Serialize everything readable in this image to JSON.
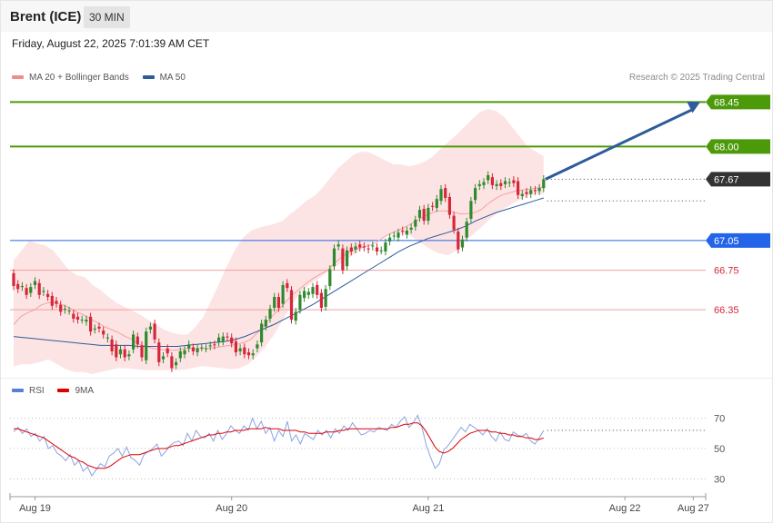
{
  "header": {
    "title": "Brent (ICE)",
    "interval": "30 MIN",
    "datetime": "Friday, August 22, 2025 7:01:39 AM CET"
  },
  "legend": {
    "items": [
      {
        "label": "MA 20 + Bollinger Bands",
        "color": "#f28b8b"
      },
      {
        "label": "MA 50",
        "color": "#2e5b9a"
      }
    ],
    "credit": "Research © 2025 Trading Central"
  },
  "rsi_legend": {
    "items": [
      {
        "label": "RSI",
        "color": "#5b7fd6"
      },
      {
        "label": "9MA",
        "color": "#e00000"
      }
    ]
  },
  "colors": {
    "up": "#2f8a2f",
    "down": "#d6263a",
    "target": "#4c9a0a",
    "pivot": "#2464e8",
    "support": "#d6263a",
    "last": "#333333",
    "arrow": "#2e5b9a",
    "band": "#fde4e4",
    "ma20": "#f5a0a0",
    "ma50": "#2e5b9a",
    "rsi": "#8aa3e3",
    "rsi_ma": "#e00000"
  },
  "chart_data": [
    {
      "type": "candlestick",
      "yrange": [
        65.7,
        68.6
      ],
      "x_ticks": [
        {
          "label": "Aug 19",
          "index": 5
        },
        {
          "label": "Aug 20",
          "index": 51
        },
        {
          "label": "Aug 21",
          "index": 97
        },
        {
          "label": "Aug 22",
          "index": 143
        },
        {
          "label": "Aug 27",
          "index": 159
        }
      ],
      "levels": [
        {
          "value": 68.45,
          "label": "68.45",
          "kind": "target"
        },
        {
          "value": 68.0,
          "label": "68.00",
          "kind": "target"
        },
        {
          "value": 67.67,
          "label": "67.67",
          "kind": "last"
        },
        {
          "value": 67.05,
          "label": "67.05",
          "kind": "pivot"
        },
        {
          "value": 66.75,
          "label": "66.75",
          "kind": "support"
        },
        {
          "value": 66.35,
          "label": "66.35",
          "kind": "support"
        }
      ],
      "candles": [
        [
          66.72,
          66.59
        ],
        [
          66.61,
          66.56
        ],
        [
          66.58,
          66.59
        ],
        [
          66.57,
          66.5
        ],
        [
          66.52,
          66.58
        ],
        [
          66.6,
          66.64
        ],
        [
          66.62,
          66.5
        ],
        [
          66.53,
          66.54
        ],
        [
          66.51,
          66.48
        ],
        [
          66.49,
          66.39
        ],
        [
          66.44,
          66.41
        ],
        [
          66.4,
          66.33
        ],
        [
          66.35,
          66.36
        ],
        [
          66.34,
          66.34
        ],
        [
          66.31,
          66.26
        ],
        [
          66.28,
          66.25
        ],
        [
          66.25,
          66.25
        ],
        [
          66.23,
          66.25
        ],
        [
          66.28,
          66.13
        ],
        [
          66.15,
          66.16
        ],
        [
          66.18,
          66.16
        ],
        [
          66.14,
          66.1
        ],
        [
          66.06,
          66.07
        ],
        [
          66.05,
          65.93
        ],
        [
          66.0,
          65.87
        ],
        [
          65.9,
          65.95
        ],
        [
          65.95,
          65.87
        ],
        [
          65.88,
          65.9
        ],
        [
          65.95,
          66.1
        ],
        [
          66.08,
          66.0
        ],
        [
          65.99,
          65.87
        ],
        [
          65.84,
          66.13
        ],
        [
          66.15,
          66.18
        ],
        [
          66.21,
          66.05
        ],
        [
          66.02,
          65.82
        ],
        [
          65.85,
          65.88
        ],
        [
          65.96,
          65.91
        ],
        [
          65.88,
          65.76
        ],
        [
          65.79,
          65.82
        ],
        [
          65.86,
          65.93
        ],
        [
          65.9,
          65.94
        ],
        [
          65.96,
          66.0
        ],
        [
          65.97,
          65.93
        ],
        [
          65.92,
          65.96
        ],
        [
          65.97,
          65.97
        ],
        [
          65.96,
          65.96
        ],
        [
          65.98,
          65.99
        ],
        [
          66.0,
          65.99
        ],
        [
          66.02,
          66.07
        ],
        [
          66.03,
          66.08
        ],
        [
          66.08,
          66.07
        ],
        [
          66.07,
          66.01
        ],
        [
          66.03,
          65.92
        ],
        [
          65.93,
          65.96
        ],
        [
          65.97,
          65.9
        ],
        [
          65.92,
          65.89
        ],
        [
          65.89,
          65.91
        ],
        [
          65.96,
          66.0
        ],
        [
          66.02,
          66.21
        ],
        [
          66.18,
          66.25
        ],
        [
          66.26,
          66.36
        ],
        [
          66.37,
          66.48
        ],
        [
          66.48,
          66.37
        ],
        [
          66.41,
          66.6
        ],
        [
          66.62,
          66.57
        ],
        [
          66.55,
          66.25
        ],
        [
          66.24,
          66.33
        ],
        [
          66.35,
          66.5
        ],
        [
          66.47,
          66.54
        ],
        [
          66.5,
          66.53
        ],
        [
          66.51,
          66.58
        ],
        [
          66.6,
          66.5
        ],
        [
          66.52,
          66.37
        ],
        [
          66.38,
          66.56
        ],
        [
          66.59,
          66.76
        ],
        [
          66.79,
          66.97
        ],
        [
          66.99,
          67.01
        ],
        [
          66.97,
          66.75
        ],
        [
          66.79,
          66.95
        ],
        [
          66.98,
          66.94
        ],
        [
          66.96,
          66.99
        ],
        [
          67.01,
          66.98
        ],
        [
          66.99,
          66.98
        ],
        [
          66.97,
          66.96
        ],
        [
          66.99,
          67.0
        ],
        [
          66.98,
          66.94
        ],
        [
          66.95,
          66.95
        ],
        [
          66.94,
          67.03
        ],
        [
          67.04,
          67.08
        ],
        [
          67.1,
          67.1
        ],
        [
          67.08,
          67.13
        ],
        [
          67.15,
          67.14
        ],
        [
          67.11,
          67.15
        ],
        [
          67.16,
          67.18
        ],
        [
          67.19,
          67.26
        ],
        [
          67.28,
          67.36
        ],
        [
          67.37,
          67.25
        ],
        [
          67.25,
          67.38
        ],
        [
          67.4,
          67.39
        ],
        [
          67.38,
          67.47
        ],
        [
          67.45,
          67.57
        ],
        [
          67.58,
          67.48
        ],
        [
          67.49,
          67.31
        ],
        [
          67.3,
          67.16
        ],
        [
          67.14,
          66.96
        ],
        [
          66.98,
          67.06
        ],
        [
          67.08,
          67.24
        ],
        [
          67.27,
          67.45
        ],
        [
          67.46,
          67.58
        ],
        [
          67.6,
          67.62
        ],
        [
          67.61,
          67.64
        ],
        [
          67.66,
          67.71
        ],
        [
          67.69,
          67.61
        ],
        [
          67.6,
          67.62
        ],
        [
          67.63,
          67.6
        ],
        [
          67.62,
          67.65
        ],
        [
          67.63,
          67.64
        ],
        [
          67.66,
          67.63
        ],
        [
          67.65,
          67.51
        ],
        [
          67.5,
          67.52
        ],
        [
          67.54,
          67.52
        ],
        [
          67.52,
          67.56
        ],
        [
          67.56,
          67.55
        ],
        [
          67.55,
          67.58
        ],
        [
          67.58,
          67.67
        ]
      ],
      "ma20": [
        66.2,
        66.28,
        66.32,
        66.35,
        66.4,
        66.42,
        66.42,
        66.4,
        66.37,
        66.33,
        66.3,
        66.26,
        66.22,
        66.18,
        66.15,
        66.12,
        66.08,
        66.05,
        66.0,
        65.98,
        65.96,
        65.95,
        65.94,
        65.94,
        65.95,
        65.96,
        65.96,
        65.96,
        65.96,
        65.97,
        65.98,
        65.99,
        66.0,
        66.02,
        66.05,
        66.12,
        66.2,
        66.28,
        66.35,
        66.43,
        66.5,
        66.56,
        66.62,
        66.67,
        66.71,
        66.75,
        66.82,
        66.88,
        66.93,
        66.96,
        66.98,
        67.0,
        67.03,
        67.08,
        67.12,
        67.15,
        67.18,
        67.22,
        67.26,
        67.3,
        67.33,
        67.35,
        67.35,
        67.34,
        67.32,
        67.32,
        67.33,
        67.36,
        67.42,
        67.47,
        67.51,
        67.53,
        67.55,
        67.56,
        67.57,
        67.58,
        67.59
      ],
      "ma50": [
        66.08,
        66.07,
        66.06,
        66.05,
        66.04,
        66.03,
        66.02,
        66.01,
        66.0,
        65.99,
        65.99,
        65.99,
        65.99,
        65.98,
        65.98,
        65.98,
        65.98,
        65.98,
        65.99,
        66.0,
        66.01,
        66.02,
        66.03,
        66.05,
        66.08,
        66.12,
        66.16,
        66.2,
        66.25,
        66.3,
        66.35,
        66.4,
        66.46,
        66.52,
        66.58,
        66.64,
        66.7,
        66.76,
        66.82,
        66.88,
        66.94,
        66.99,
        67.03,
        67.07,
        67.1,
        67.13,
        67.16,
        67.2,
        67.25,
        67.29,
        67.33,
        67.36,
        67.39,
        67.42,
        67.45,
        67.48
      ],
      "band_upper": [
        66.85,
        66.95,
        67.05,
        67.02,
        67.0,
        66.95,
        66.85,
        66.75,
        66.7,
        66.68,
        66.6,
        66.55,
        66.48,
        66.42,
        66.38,
        66.34,
        66.3,
        66.25,
        66.2,
        66.15,
        66.12,
        66.1,
        66.1,
        66.18,
        66.28,
        66.45,
        66.62,
        66.8,
        66.96,
        67.08,
        67.15,
        67.18,
        67.2,
        67.22,
        67.25,
        67.32,
        67.38,
        67.45,
        67.5,
        67.58,
        67.68,
        67.78,
        67.85,
        67.92,
        67.95,
        67.94,
        67.9,
        67.86,
        67.82,
        67.82,
        67.8,
        67.82,
        67.85,
        67.9,
        67.98,
        68.05,
        68.12,
        68.2,
        68.28,
        68.35,
        68.38,
        68.36,
        68.3,
        68.2,
        68.1,
        68.0,
        67.95,
        67.9
      ],
      "band_lower": [
        65.78,
        65.8,
        65.8,
        65.82,
        65.85,
        65.8,
        65.75,
        65.72,
        65.72,
        65.7,
        65.72,
        65.74,
        65.76,
        65.76,
        65.75,
        65.74,
        65.74,
        65.74,
        65.74,
        65.74,
        65.75,
        65.77,
        65.78,
        65.77,
        65.76,
        65.75,
        65.76,
        65.8,
        65.88,
        65.98,
        66.1,
        66.25,
        66.4,
        66.52,
        66.6,
        66.66,
        66.72,
        66.78,
        66.84,
        66.9,
        66.96,
        67.02,
        67.06,
        67.1,
        67.12,
        67.12,
        67.08,
        67.02,
        66.96,
        66.92,
        66.9,
        66.95,
        67.05,
        67.12,
        67.2,
        67.28,
        67.35,
        67.4,
        67.45,
        67.5,
        67.52,
        67.52
      ],
      "forecast": {
        "from_value": 67.67,
        "to_value": 68.45
      }
    },
    {
      "type": "line",
      "title": "RSI",
      "yrange": [
        20,
        80
      ],
      "y_ticks": [
        30,
        50,
        70
      ],
      "rsi": [
        61,
        64,
        60,
        63,
        58,
        60,
        55,
        58,
        50,
        52,
        47,
        45,
        42,
        46,
        39,
        42,
        35,
        38,
        32,
        36,
        40,
        38,
        45,
        47,
        50,
        45,
        51,
        44,
        42,
        39,
        46,
        48,
        50,
        53,
        45,
        48,
        52,
        54,
        55,
        52,
        60,
        55,
        62,
        58,
        57,
        60,
        55,
        62,
        56,
        60,
        65,
        62,
        60,
        65,
        62,
        70,
        63,
        68,
        60,
        64,
        55,
        62,
        58,
        68,
        55,
        59,
        53,
        60,
        58,
        56,
        62,
        59,
        62,
        57,
        63,
        60,
        65,
        62,
        67,
        63,
        59,
        60,
        62,
        61,
        64,
        63,
        62,
        66,
        64,
        68,
        71,
        64,
        67,
        72,
        64,
        52,
        44,
        37,
        40,
        49,
        52,
        56,
        60,
        64,
        61,
        66,
        64,
        62,
        59,
        63,
        58,
        55,
        61,
        56,
        55,
        61,
        59,
        58,
        60,
        55,
        53,
        57,
        62
      ],
      "rsi_ma": [
        63,
        63,
        62,
        61,
        60,
        59,
        58,
        57,
        55,
        53,
        51,
        49,
        47,
        45,
        44,
        42,
        41,
        39,
        38,
        37,
        37,
        37,
        38,
        40,
        42,
        44,
        45,
        46,
        46,
        46,
        47,
        48,
        49,
        50,
        50,
        50,
        51,
        52,
        52,
        53,
        54,
        55,
        56,
        57,
        58,
        59,
        59,
        60,
        60,
        61,
        61,
        62,
        62,
        62,
        63,
        63,
        63,
        63,
        64,
        63,
        63,
        63,
        62,
        62,
        62,
        62,
        61,
        61,
        60,
        60,
        60,
        60,
        61,
        61,
        61,
        62,
        62,
        63,
        63,
        63,
        63,
        63,
        63,
        63,
        63,
        63,
        63,
        64,
        64,
        65,
        66,
        66,
        67,
        67,
        65,
        61,
        56,
        51,
        48,
        47,
        48,
        50,
        53,
        56,
        58,
        60,
        61,
        62,
        62,
        62,
        61,
        61,
        60,
        60,
        59,
        59,
        58,
        58,
        57,
        57,
        56,
        56,
        57
      ]
    }
  ]
}
